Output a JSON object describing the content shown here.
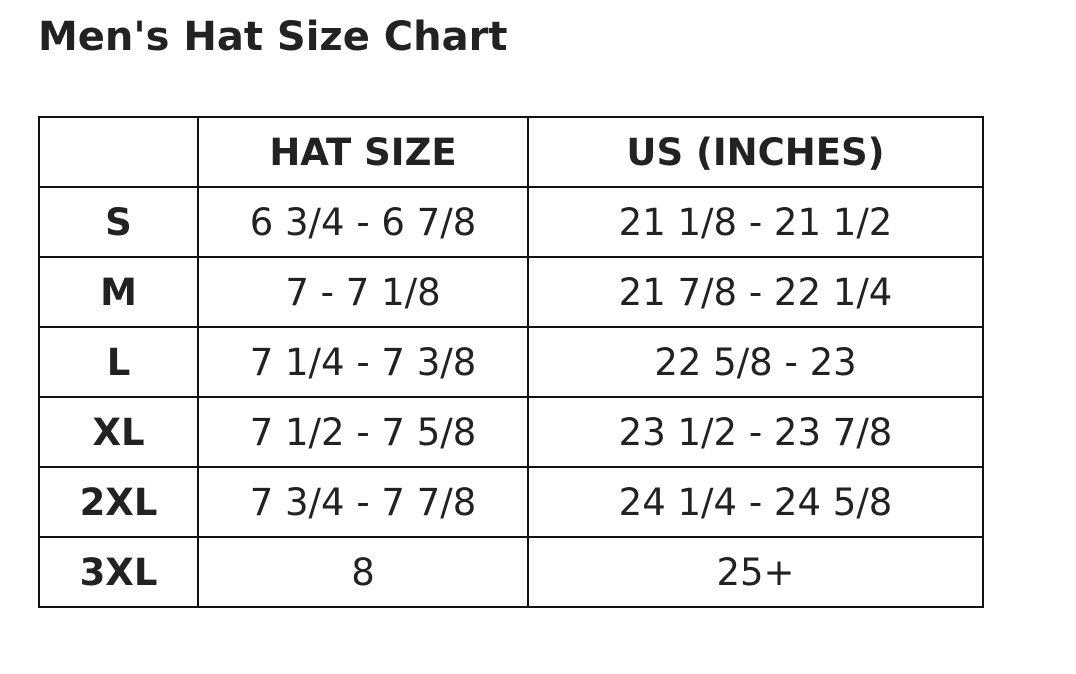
{
  "title": "Men's Hat Size Chart",
  "table": {
    "headers": [
      "",
      "HAT SIZE",
      "US (INCHES)"
    ],
    "rows": [
      [
        "S",
        "6 3/4 - 6 7/8",
        "21 1/8 - 21 1/2"
      ],
      [
        "M",
        "7 - 7 1/8",
        "21 7/8 - 22 1/4"
      ],
      [
        "L",
        "7 1/4 - 7 3/8",
        "22 5/8 - 23"
      ],
      [
        "XL",
        "7 1/2 - 7 5/8",
        "23 1/2 - 23 7/8"
      ],
      [
        "2XL",
        "7 3/4 - 7 7/8",
        "24 1/4 - 24 5/8"
      ],
      [
        "3XL",
        "8",
        "25+"
      ]
    ]
  }
}
